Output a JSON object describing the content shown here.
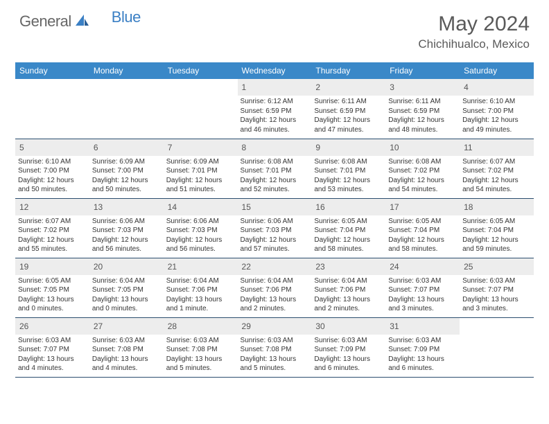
{
  "logo": {
    "general": "General",
    "blue": "Blue"
  },
  "title": {
    "month": "May 2024",
    "location": "Chichihualco, Mexico"
  },
  "colors": {
    "header_bg": "#3a88c8",
    "header_fg": "#ffffff",
    "daynum_bg": "#ededed",
    "border": "#2a4d6e",
    "text": "#333333",
    "logo_blue": "#3a7fc4",
    "logo_gray": "#666666"
  },
  "dow": [
    "Sunday",
    "Monday",
    "Tuesday",
    "Wednesday",
    "Thursday",
    "Friday",
    "Saturday"
  ],
  "weeks": [
    [
      null,
      null,
      null,
      {
        "n": "1",
        "sr": "6:12 AM",
        "ss": "6:59 PM",
        "dl": "12 hours and 46 minutes."
      },
      {
        "n": "2",
        "sr": "6:11 AM",
        "ss": "6:59 PM",
        "dl": "12 hours and 47 minutes."
      },
      {
        "n": "3",
        "sr": "6:11 AM",
        "ss": "6:59 PM",
        "dl": "12 hours and 48 minutes."
      },
      {
        "n": "4",
        "sr": "6:10 AM",
        "ss": "7:00 PM",
        "dl": "12 hours and 49 minutes."
      }
    ],
    [
      {
        "n": "5",
        "sr": "6:10 AM",
        "ss": "7:00 PM",
        "dl": "12 hours and 50 minutes."
      },
      {
        "n": "6",
        "sr": "6:09 AM",
        "ss": "7:00 PM",
        "dl": "12 hours and 50 minutes."
      },
      {
        "n": "7",
        "sr": "6:09 AM",
        "ss": "7:01 PM",
        "dl": "12 hours and 51 minutes."
      },
      {
        "n": "8",
        "sr": "6:08 AM",
        "ss": "7:01 PM",
        "dl": "12 hours and 52 minutes."
      },
      {
        "n": "9",
        "sr": "6:08 AM",
        "ss": "7:01 PM",
        "dl": "12 hours and 53 minutes."
      },
      {
        "n": "10",
        "sr": "6:08 AM",
        "ss": "7:02 PM",
        "dl": "12 hours and 54 minutes."
      },
      {
        "n": "11",
        "sr": "6:07 AM",
        "ss": "7:02 PM",
        "dl": "12 hours and 54 minutes."
      }
    ],
    [
      {
        "n": "12",
        "sr": "6:07 AM",
        "ss": "7:02 PM",
        "dl": "12 hours and 55 minutes."
      },
      {
        "n": "13",
        "sr": "6:06 AM",
        "ss": "7:03 PM",
        "dl": "12 hours and 56 minutes."
      },
      {
        "n": "14",
        "sr": "6:06 AM",
        "ss": "7:03 PM",
        "dl": "12 hours and 56 minutes."
      },
      {
        "n": "15",
        "sr": "6:06 AM",
        "ss": "7:03 PM",
        "dl": "12 hours and 57 minutes."
      },
      {
        "n": "16",
        "sr": "6:05 AM",
        "ss": "7:04 PM",
        "dl": "12 hours and 58 minutes."
      },
      {
        "n": "17",
        "sr": "6:05 AM",
        "ss": "7:04 PM",
        "dl": "12 hours and 58 minutes."
      },
      {
        "n": "18",
        "sr": "6:05 AM",
        "ss": "7:04 PM",
        "dl": "12 hours and 59 minutes."
      }
    ],
    [
      {
        "n": "19",
        "sr": "6:05 AM",
        "ss": "7:05 PM",
        "dl": "13 hours and 0 minutes."
      },
      {
        "n": "20",
        "sr": "6:04 AM",
        "ss": "7:05 PM",
        "dl": "13 hours and 0 minutes."
      },
      {
        "n": "21",
        "sr": "6:04 AM",
        "ss": "7:06 PM",
        "dl": "13 hours and 1 minute."
      },
      {
        "n": "22",
        "sr": "6:04 AM",
        "ss": "7:06 PM",
        "dl": "13 hours and 2 minutes."
      },
      {
        "n": "23",
        "sr": "6:04 AM",
        "ss": "7:06 PM",
        "dl": "13 hours and 2 minutes."
      },
      {
        "n": "24",
        "sr": "6:03 AM",
        "ss": "7:07 PM",
        "dl": "13 hours and 3 minutes."
      },
      {
        "n": "25",
        "sr": "6:03 AM",
        "ss": "7:07 PM",
        "dl": "13 hours and 3 minutes."
      }
    ],
    [
      {
        "n": "26",
        "sr": "6:03 AM",
        "ss": "7:07 PM",
        "dl": "13 hours and 4 minutes."
      },
      {
        "n": "27",
        "sr": "6:03 AM",
        "ss": "7:08 PM",
        "dl": "13 hours and 4 minutes."
      },
      {
        "n": "28",
        "sr": "6:03 AM",
        "ss": "7:08 PM",
        "dl": "13 hours and 5 minutes."
      },
      {
        "n": "29",
        "sr": "6:03 AM",
        "ss": "7:08 PM",
        "dl": "13 hours and 5 minutes."
      },
      {
        "n": "30",
        "sr": "6:03 AM",
        "ss": "7:09 PM",
        "dl": "13 hours and 6 minutes."
      },
      {
        "n": "31",
        "sr": "6:03 AM",
        "ss": "7:09 PM",
        "dl": "13 hours and 6 minutes."
      },
      null
    ]
  ],
  "labels": {
    "sunrise": "Sunrise:",
    "sunset": "Sunset:",
    "daylight": "Daylight:"
  }
}
